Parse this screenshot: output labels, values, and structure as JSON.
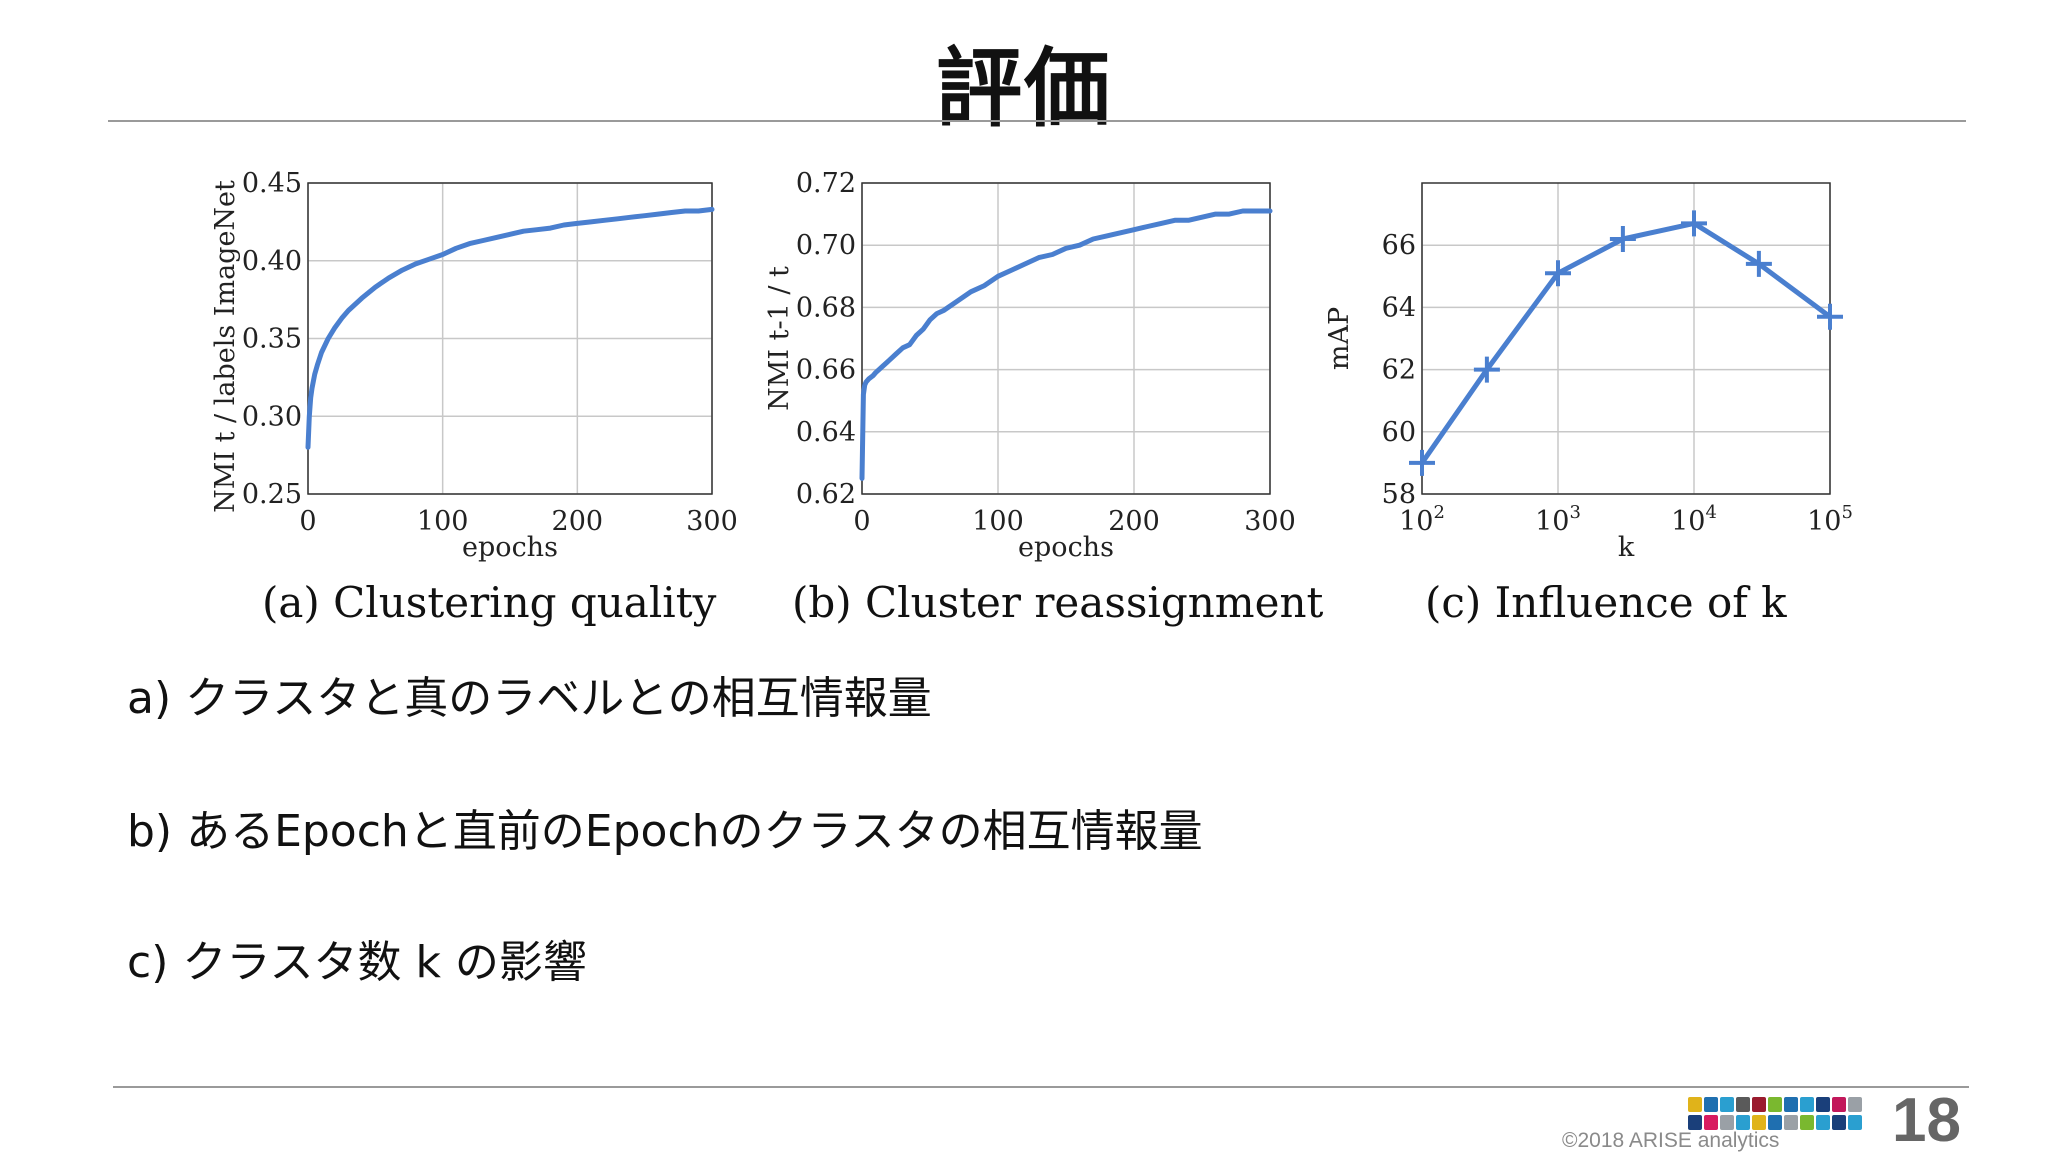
{
  "slide": {
    "title": "評価",
    "bullets": [
      "a) クラスタと真のラベルとの相互情報量",
      "b) あるEpochと直前のEpochのクラスタの相互情報量",
      "c) クラスタ数 k の影響"
    ],
    "copyright": "©2018 ARISE analytics",
    "page_number": "18",
    "line_color": "#4a7fcf"
  },
  "chart_data": [
    {
      "type": "line",
      "caption": "(a) Clustering quality",
      "xlabel": "epochs",
      "ylabel": "NMI t / labels ImageNet",
      "xlim": [
        0,
        300
      ],
      "ylim": [
        0.25,
        0.45
      ],
      "xticks": [
        "0",
        "100",
        "200",
        "300"
      ],
      "yticks": [
        "0.25",
        "0.30",
        "0.35",
        "0.40",
        "0.45"
      ],
      "grid": true,
      "x": [
        0,
        1,
        2,
        3,
        5,
        7,
        10,
        15,
        20,
        25,
        30,
        40,
        50,
        60,
        70,
        80,
        90,
        100,
        110,
        120,
        130,
        140,
        150,
        160,
        170,
        180,
        190,
        200,
        210,
        220,
        230,
        240,
        250,
        260,
        270,
        280,
        290,
        300
      ],
      "y": [
        0.28,
        0.3,
        0.312,
        0.318,
        0.327,
        0.333,
        0.341,
        0.35,
        0.357,
        0.363,
        0.368,
        0.376,
        0.383,
        0.389,
        0.394,
        0.398,
        0.401,
        0.404,
        0.408,
        0.411,
        0.413,
        0.415,
        0.417,
        0.419,
        0.42,
        0.421,
        0.423,
        0.424,
        0.425,
        0.426,
        0.427,
        0.428,
        0.429,
        0.43,
        0.431,
        0.432,
        0.432,
        0.433
      ]
    },
    {
      "type": "line",
      "caption": "(b) Cluster reassignment",
      "xlabel": "epochs",
      "ylabel": "NMI t-1 / t",
      "xlim": [
        0,
        300
      ],
      "ylim": [
        0.62,
        0.72
      ],
      "xticks": [
        "0",
        "100",
        "200",
        "300"
      ],
      "yticks": [
        "0.62",
        "0.64",
        "0.66",
        "0.68",
        "0.70",
        "0.72"
      ],
      "grid": true,
      "x": [
        0,
        1,
        2,
        3,
        5,
        8,
        10,
        15,
        20,
        25,
        30,
        35,
        40,
        45,
        50,
        55,
        60,
        70,
        80,
        90,
        100,
        110,
        120,
        130,
        140,
        150,
        160,
        170,
        180,
        190,
        200,
        210,
        220,
        230,
        240,
        250,
        260,
        270,
        280,
        290,
        300
      ],
      "y": [
        0.625,
        0.652,
        0.655,
        0.656,
        0.657,
        0.658,
        0.659,
        0.661,
        0.663,
        0.665,
        0.667,
        0.668,
        0.671,
        0.673,
        0.676,
        0.678,
        0.679,
        0.682,
        0.685,
        0.687,
        0.69,
        0.692,
        0.694,
        0.696,
        0.697,
        0.699,
        0.7,
        0.702,
        0.703,
        0.704,
        0.705,
        0.706,
        0.707,
        0.708,
        0.708,
        0.709,
        0.71,
        0.71,
        0.711,
        0.711,
        0.711
      ]
    },
    {
      "type": "line",
      "caption": "(c) Influence of k",
      "xlabel": "k",
      "ylabel": "mAP",
      "xscale": "log",
      "xlim": [
        100,
        100000
      ],
      "ylim": [
        58,
        68
      ],
      "xticks": [
        "10^2",
        "10^3",
        "10^4",
        "10^5"
      ],
      "yticks": [
        "58",
        "60",
        "62",
        "64",
        "66"
      ],
      "grid": true,
      "markers": "plus",
      "x": [
        100,
        300,
        1000,
        3000,
        10000,
        30000,
        100000
      ],
      "y": [
        59.0,
        62.0,
        65.1,
        66.2,
        66.7,
        65.4,
        63.7
      ]
    }
  ]
}
